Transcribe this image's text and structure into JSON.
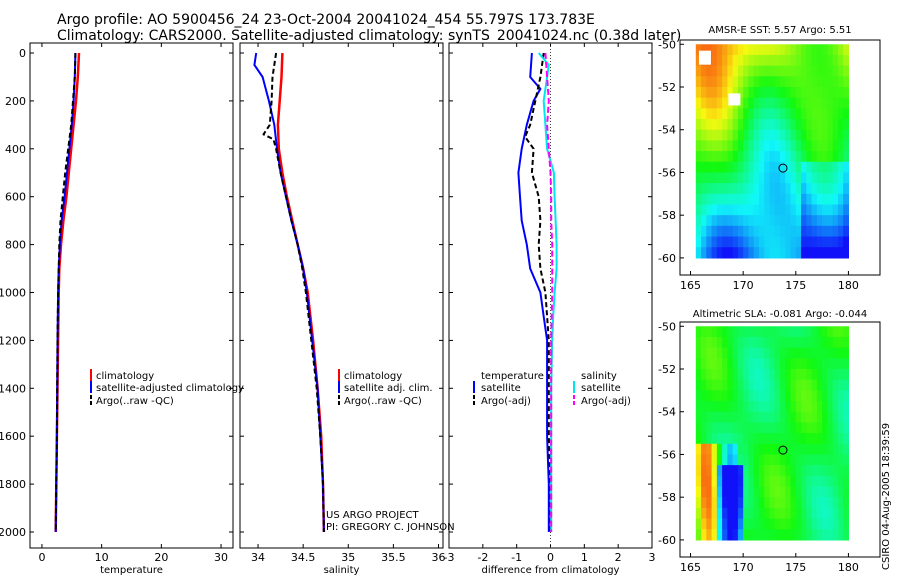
{
  "header": {
    "line1": "Argo profile: AO 5900456_24 23-Oct-2004 20041024_454 55.797S 173.783E",
    "line2": "Climatology: CARS2000. Satellite-adjusted climatology: synTS_20041024.nc (0.38d later)"
  },
  "credits": {
    "project": "US ARGO PROJECT",
    "pi": "PI: GREGORY C. JOHNSON"
  },
  "timestamp": "CSIRO 04-Aug-2005 18:39:59",
  "colors": {
    "climatology": "#ff0000",
    "satellite": "#0000ff",
    "argo": "#000000",
    "salinity_sat": "#00e5ee",
    "salinity_argo": "#ff00ff"
  },
  "chart_data": [
    {
      "type": "line",
      "id": "temperature",
      "xlabel": "temperature",
      "xlim": [
        -2,
        32
      ],
      "xticks": [
        0,
        10,
        20,
        30
      ],
      "ylim": [
        0,
        2050
      ],
      "yticks": [
        0,
        200,
        400,
        600,
        800,
        1000,
        1200,
        1400,
        1600,
        1800,
        2000
      ],
      "y_reversed": true,
      "legend": [
        "climatology",
        "satellite-adjusted climatology",
        "Argo(..raw -QC)"
      ],
      "series": [
        {
          "name": "climatology",
          "depth": [
            0,
            100,
            200,
            300,
            400,
            500,
            600,
            700,
            800,
            900,
            1000,
            1200,
            1400,
            1600,
            1800,
            2000
          ],
          "values": [
            6.2,
            6.0,
            5.7,
            5.3,
            4.9,
            4.5,
            4.1,
            3.6,
            3.2,
            2.9,
            2.8,
            2.7,
            2.6,
            2.5,
            2.4,
            2.3
          ]
        },
        {
          "name": "satellite-adjusted climatology",
          "depth": [
            0,
            100,
            200,
            300,
            400,
            500,
            600,
            700,
            800,
            900,
            1000,
            1200,
            1400,
            1600,
            1800,
            2000
          ],
          "values": [
            5.6,
            5.5,
            5.3,
            5.0,
            4.6,
            4.2,
            3.8,
            3.3,
            3.0,
            2.8,
            2.7,
            2.6,
            2.55,
            2.5,
            2.4,
            2.3
          ]
        },
        {
          "name": "Argo(..raw -QC)",
          "depth": [
            0,
            100,
            200,
            300,
            400,
            500,
            600,
            700,
            800,
            900,
            1000,
            1200,
            1400,
            1600,
            1800,
            2000
          ],
          "values": [
            5.6,
            5.5,
            5.2,
            4.9,
            4.4,
            3.9,
            3.5,
            3.1,
            2.9,
            2.8,
            2.7,
            2.6,
            2.55,
            2.5,
            2.4,
            2.3
          ]
        }
      ]
    },
    {
      "type": "line",
      "id": "salinity",
      "xlabel": "salinity",
      "xlim": [
        33.8,
        36.05
      ],
      "xticks": [
        34,
        34.5,
        35,
        35.5,
        36
      ],
      "ylim": [
        0,
        2050
      ],
      "y_reversed": true,
      "legend": [
        "climatology",
        "satellite adj. clim.",
        "Argo(..raw -QC)"
      ],
      "series": [
        {
          "name": "climatology",
          "depth": [
            0,
            100,
            200,
            300,
            400,
            500,
            600,
            700,
            800,
            900,
            1000,
            1200,
            1400,
            1600,
            1800,
            2000
          ],
          "values": [
            34.27,
            34.26,
            34.24,
            34.22,
            34.23,
            34.27,
            34.32,
            34.38,
            34.44,
            34.5,
            34.55,
            34.61,
            34.66,
            34.7,
            34.72,
            34.73
          ]
        },
        {
          "name": "satellite adj. clim.",
          "depth": [
            0,
            50,
            100,
            200,
            300,
            400,
            500,
            600,
            700,
            800,
            900,
            1000,
            1200,
            1400,
            1600,
            1800,
            2000
          ],
          "values": [
            33.98,
            33.96,
            34.05,
            34.12,
            34.18,
            34.21,
            34.25,
            34.31,
            34.37,
            34.44,
            34.5,
            34.54,
            34.6,
            34.66,
            34.69,
            34.72,
            34.73
          ]
        },
        {
          "name": "Argo(..raw -QC)",
          "depth": [
            0,
            50,
            100,
            200,
            300,
            340,
            360,
            400,
            500,
            600,
            700,
            800,
            900,
            1000,
            1200,
            1400,
            1600,
            1800,
            2000
          ],
          "values": [
            34.2,
            34.18,
            34.16,
            34.15,
            34.13,
            34.06,
            34.17,
            34.2,
            34.25,
            34.31,
            34.37,
            34.44,
            34.49,
            34.53,
            34.59,
            34.65,
            34.69,
            34.72,
            34.73
          ]
        }
      ]
    },
    {
      "type": "line",
      "id": "difference",
      "xlabel": "difference from climatology",
      "xlim": [
        -3,
        3
      ],
      "xticks": [
        -3,
        -2,
        -1,
        0,
        1,
        2,
        3
      ],
      "ylim": [
        0,
        2050
      ],
      "y_reversed": true,
      "legend_temperature_title": "temperature",
      "legend_temperature": [
        "satellite",
        "Argo(-adj)"
      ],
      "legend_salinity_title": "salinity",
      "legend_salinity": [
        "satellite",
        "Argo(-adj)"
      ],
      "series": [
        {
          "name": "temperature satellite",
          "depth": [
            0,
            100,
            150,
            200,
            300,
            400,
            500,
            600,
            700,
            800,
            900,
            1000,
            1100,
            1200,
            1400,
            1600,
            1800,
            2000
          ],
          "values": [
            -0.55,
            -0.6,
            -0.3,
            -0.5,
            -0.7,
            -0.85,
            -0.95,
            -0.9,
            -0.85,
            -0.7,
            -0.6,
            -0.3,
            -0.2,
            -0.1,
            -0.1,
            -0.1,
            -0.05,
            -0.05
          ]
        },
        {
          "name": "temperature Argo(-adj)",
          "depth": [
            0,
            100,
            200,
            300,
            350,
            400,
            500,
            600,
            700,
            800,
            900,
            1000,
            1100,
            1200,
            1400,
            1600,
            1800,
            2000
          ],
          "values": [
            -0.2,
            -0.3,
            -0.45,
            -0.6,
            -0.75,
            -0.5,
            -0.55,
            -0.35,
            -0.3,
            -0.35,
            -0.3,
            -0.15,
            -0.1,
            -0.05,
            -0.05,
            -0.05,
            0,
            0
          ]
        },
        {
          "name": "salinity satellite",
          "depth": [
            0,
            50,
            100,
            200,
            300,
            400,
            500,
            600,
            700,
            800,
            900,
            1000,
            1100,
            1200,
            1400,
            1600,
            1800,
            2000
          ],
          "values": [
            -0.35,
            -0.05,
            -0.1,
            -0.2,
            -0.15,
            -0.1,
            0.1,
            0.12,
            0.15,
            0.18,
            0.18,
            0.12,
            0.08,
            0.05,
            0.02,
            0.02,
            0.02,
            0.02
          ]
        },
        {
          "name": "salinity Argo(-adj)",
          "depth": [
            0,
            100,
            200,
            300,
            400,
            500,
            600,
            700,
            800,
            900,
            1000,
            1200,
            1400,
            1600,
            1800,
            2000
          ],
          "values": [
            -0.15,
            -0.1,
            -0.05,
            -0.1,
            -0.05,
            0,
            0.02,
            0.02,
            0.05,
            0.05,
            0.05,
            0.02,
            0.02,
            0.02,
            0.02,
            0.02
          ]
        }
      ]
    },
    {
      "type": "heatmap",
      "id": "sst-map",
      "title": "AMSR-E SST: 5.57  Argo: 5.51",
      "xlim": [
        164,
        183
      ],
      "xticks": [
        165,
        170,
        175,
        180
      ],
      "ylim": [
        -60.8,
        -49.8
      ],
      "yticks": [
        -50,
        -52,
        -54,
        -56,
        -58,
        -60
      ],
      "marker": [
        173.783,
        -55.797
      ]
    },
    {
      "type": "heatmap",
      "id": "sla-map",
      "title": "Altimetric SLA: -0.081  Argo: -0.044",
      "xlim": [
        164,
        183
      ],
      "xticks": [
        165,
        170,
        175,
        180
      ],
      "ylim": [
        -60.8,
        -49.8
      ],
      "yticks": [
        -50,
        -52,
        -54,
        -56,
        -58,
        -60
      ],
      "marker": [
        173.783,
        -55.797
      ]
    }
  ]
}
